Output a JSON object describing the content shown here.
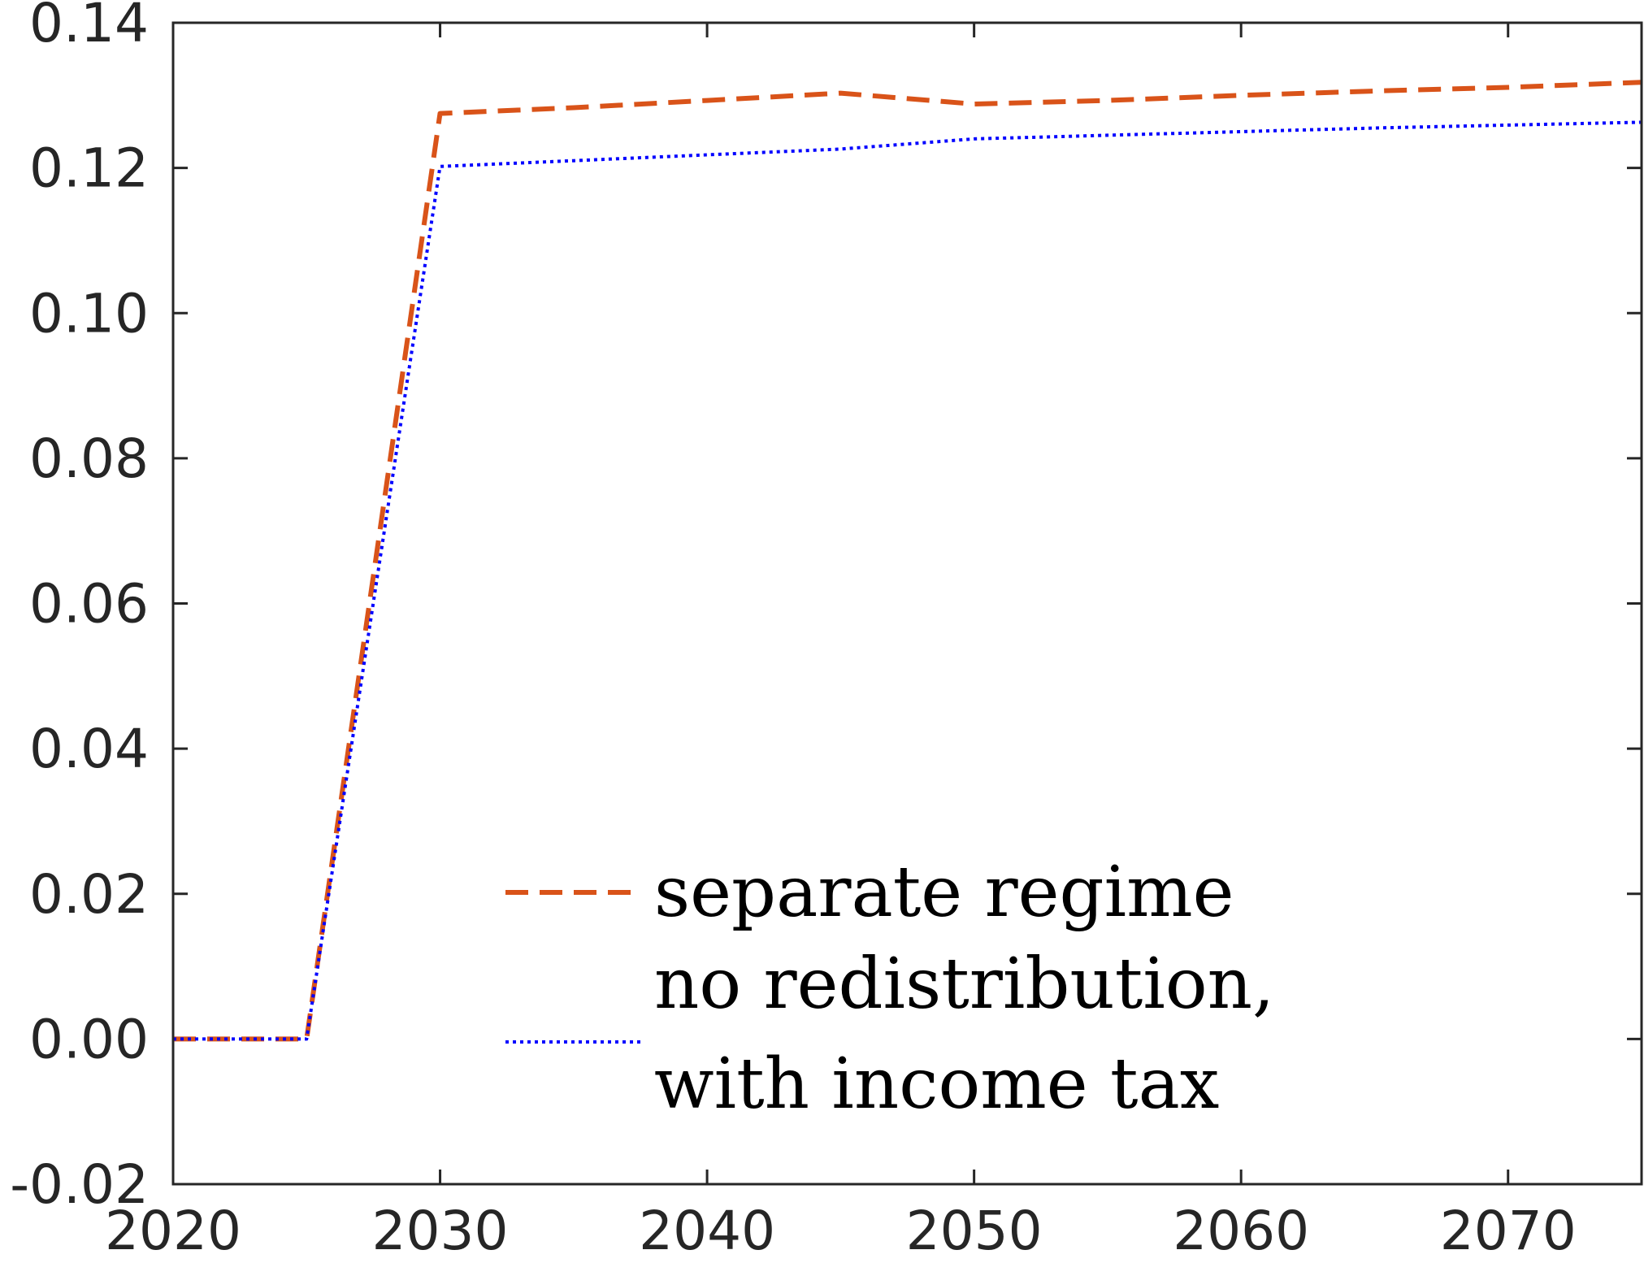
{
  "chart_data": {
    "type": "line",
    "title": "",
    "xlabel": "",
    "ylabel": "",
    "xlim": [
      2020,
      2075
    ],
    "ylim": [
      -0.02,
      0.14
    ],
    "x_ticks": [
      2020,
      2030,
      2040,
      2050,
      2060,
      2070
    ],
    "x_tick_labels": [
      "2020",
      "2030",
      "2040",
      "2050",
      "2060",
      "2070"
    ],
    "y_ticks": [
      -0.02,
      0.0,
      0.02,
      0.04,
      0.06,
      0.08,
      0.1,
      0.12,
      0.14
    ],
    "y_tick_labels": [
      "-0.02",
      "0.00",
      "0.02",
      "0.04",
      "0.06",
      "0.08",
      "0.10",
      "0.12",
      "0.14"
    ],
    "grid": false,
    "box": true,
    "legend_position": "bottom-center",
    "series": [
      {
        "name": "separate regime",
        "color": "#D95319",
        "line_style": "dashed",
        "x": [
          2020,
          2025,
          2030,
          2035,
          2040,
          2045,
          2050,
          2055,
          2060,
          2065,
          2070,
          2075
        ],
        "y": [
          0.0,
          0.0,
          0.1275,
          0.1283,
          0.1293,
          0.1303,
          0.1288,
          0.1293,
          0.13,
          0.1306,
          0.1311,
          0.1318
        ]
      },
      {
        "name": "no redistribution, with income tax",
        "legend_lines": [
          "no redistribution,",
          "with income tax"
        ],
        "color": "#0000FF",
        "line_style": "dotted",
        "x": [
          2020,
          2025,
          2030,
          2035,
          2040,
          2045,
          2050,
          2055,
          2060,
          2065,
          2070,
          2075
        ],
        "y": [
          0.0,
          0.0,
          0.1202,
          0.121,
          0.1218,
          0.1226,
          0.124,
          0.1245,
          0.125,
          0.1255,
          0.1259,
          0.1263
        ]
      }
    ]
  }
}
